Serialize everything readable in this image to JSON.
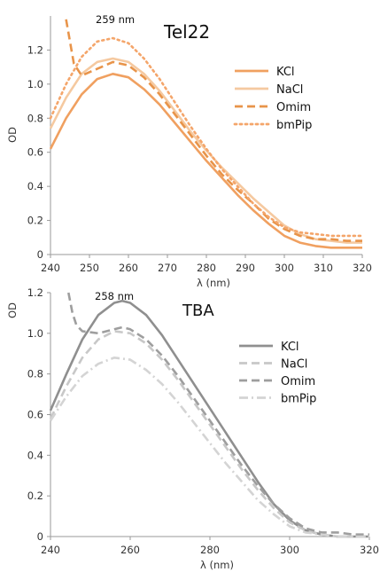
{
  "chart_data": [
    {
      "type": "line",
      "title": "Tel22",
      "annotation": "259 nm",
      "xlabel": "λ (nm)",
      "ylabel": "OD",
      "xlim": [
        240,
        320
      ],
      "ylim": [
        0,
        1.4
      ],
      "x_ticks": [
        "240",
        "250",
        "260",
        "270",
        "280",
        "290",
        "300",
        "310",
        "320"
      ],
      "y_ticks": [
        "0",
        "0.2",
        "0.4",
        "0.6",
        "0.8",
        "1.0",
        "1.2"
      ],
      "grid": false,
      "legend_position": "right",
      "series": [
        {
          "name": "KCl",
          "color": "#f0a060",
          "dash": "solid",
          "x": [
            240,
            244,
            248,
            252,
            256,
            260,
            264,
            268,
            272,
            276,
            280,
            284,
            288,
            292,
            296,
            300,
            304,
            308,
            312,
            316,
            320
          ],
          "y": [
            0.62,
            0.8,
            0.94,
            1.03,
            1.06,
            1.04,
            0.97,
            0.88,
            0.77,
            0.66,
            0.55,
            0.45,
            0.35,
            0.26,
            0.18,
            0.11,
            0.07,
            0.05,
            0.04,
            0.04,
            0.04
          ]
        },
        {
          "name": "NaCl",
          "color": "#f5c9a0",
          "dash": "solid",
          "x": [
            240,
            244,
            248,
            252,
            256,
            260,
            264,
            268,
            272,
            276,
            280,
            284,
            288,
            292,
            296,
            300,
            304,
            308,
            312,
            316,
            320
          ],
          "y": [
            0.74,
            0.92,
            1.06,
            1.13,
            1.15,
            1.13,
            1.06,
            0.96,
            0.84,
            0.72,
            0.61,
            0.51,
            0.42,
            0.33,
            0.25,
            0.17,
            0.12,
            0.09,
            0.08,
            0.07,
            0.07
          ]
        },
        {
          "name": "Omim",
          "color": "#e8944a",
          "dash": "dashed",
          "x": [
            244,
            245,
            246,
            248,
            252,
            256,
            260,
            264,
            268,
            272,
            276,
            280,
            284,
            288,
            292,
            296,
            300,
            304,
            308,
            312,
            316,
            320
          ],
          "y": [
            1.38,
            1.25,
            1.12,
            1.05,
            1.09,
            1.13,
            1.11,
            1.04,
            0.94,
            0.82,
            0.7,
            0.58,
            0.47,
            0.38,
            0.3,
            0.21,
            0.15,
            0.11,
            0.09,
            0.09,
            0.08,
            0.08
          ]
        },
        {
          "name": "bmPip",
          "color": "#f4a56a",
          "dash": "dotted",
          "x": [
            240,
            244,
            248,
            252,
            256,
            260,
            264,
            268,
            272,
            276,
            280,
            284,
            288,
            292,
            296,
            300,
            304,
            308,
            312,
            316,
            320
          ],
          "y": [
            0.8,
            1.0,
            1.16,
            1.25,
            1.27,
            1.24,
            1.15,
            1.03,
            0.89,
            0.75,
            0.62,
            0.5,
            0.4,
            0.3,
            0.22,
            0.16,
            0.13,
            0.12,
            0.11,
            0.11,
            0.11
          ]
        }
      ]
    },
    {
      "type": "line",
      "title": "TBA",
      "annotation": "258 nm",
      "xlabel": "λ (nm)",
      "ylabel": "OD",
      "xlim": [
        240,
        320
      ],
      "ylim": [
        0,
        1.2
      ],
      "x_ticks": [
        "240",
        "260",
        "280",
        "300",
        "320"
      ],
      "y_ticks": [
        "0",
        "0.2",
        "0.4",
        "0.6",
        "0.8",
        "1.0",
        "1.2"
      ],
      "grid": false,
      "legend_position": "right",
      "series": [
        {
          "name": "KCl",
          "color": "#8f8f8f",
          "dash": "solid",
          "x": [
            240,
            244,
            248,
            252,
            256,
            258,
            260,
            264,
            268,
            272,
            276,
            280,
            284,
            288,
            292,
            296,
            300,
            304,
            308,
            312,
            316,
            320
          ],
          "y": [
            0.62,
            0.8,
            0.97,
            1.09,
            1.15,
            1.16,
            1.15,
            1.09,
            0.99,
            0.87,
            0.75,
            0.63,
            0.51,
            0.39,
            0.27,
            0.16,
            0.08,
            0.03,
            0.01,
            0.0,
            0.0,
            0.0
          ]
        },
        {
          "name": "NaCl",
          "color": "#c8c8c8",
          "dash": "dashed",
          "x": [
            240,
            244,
            248,
            252,
            256,
            260,
            264,
            268,
            272,
            276,
            280,
            284,
            288,
            292,
            296,
            300,
            304,
            308,
            312,
            316,
            320
          ],
          "y": [
            0.58,
            0.74,
            0.88,
            0.97,
            1.01,
            1.0,
            0.95,
            0.87,
            0.77,
            0.66,
            0.55,
            0.44,
            0.33,
            0.23,
            0.14,
            0.07,
            0.03,
            0.01,
            0.0,
            0.0,
            0.0
          ]
        },
        {
          "name": "Omim",
          "color": "#9e9e9e",
          "dash": "dashed",
          "x": [
            244.5,
            245.5,
            246.5,
            248,
            252,
            256,
            258,
            260,
            264,
            268,
            272,
            276,
            280,
            284,
            288,
            292,
            296,
            300,
            304,
            308,
            312,
            316,
            320
          ],
          "y": [
            1.2,
            1.1,
            1.04,
            1.01,
            1.0,
            1.02,
            1.03,
            1.02,
            0.97,
            0.89,
            0.79,
            0.68,
            0.57,
            0.46,
            0.35,
            0.25,
            0.16,
            0.09,
            0.04,
            0.02,
            0.02,
            0.01,
            0.01
          ]
        },
        {
          "name": "bmPip",
          "color": "#d4d4d4",
          "dash": "dashdot",
          "x": [
            240,
            244,
            248,
            252,
            256,
            260,
            264,
            268,
            272,
            276,
            280,
            284,
            288,
            292,
            296,
            300,
            304,
            308,
            312,
            316,
            320
          ],
          "y": [
            0.57,
            0.69,
            0.79,
            0.85,
            0.88,
            0.87,
            0.82,
            0.75,
            0.66,
            0.56,
            0.46,
            0.36,
            0.27,
            0.18,
            0.11,
            0.05,
            0.02,
            0.01,
            0.0,
            0.0,
            0.0
          ]
        }
      ]
    }
  ]
}
